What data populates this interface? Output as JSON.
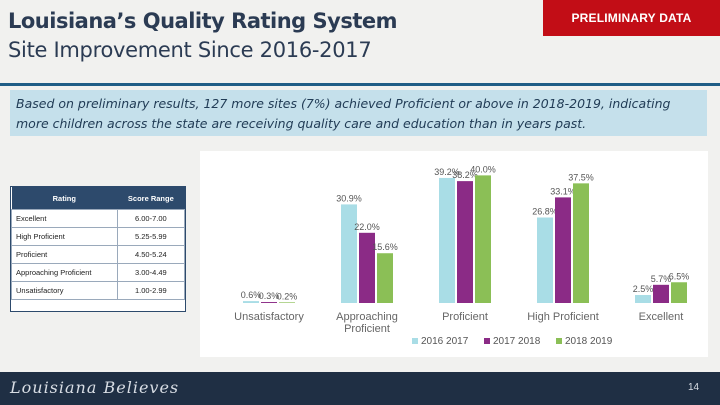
{
  "header": {
    "title": "Louisiana’s Quality Rating System",
    "subtitle": "Site Improvement Since 2016-2017",
    "badge": "PRELIMINARY DATA"
  },
  "callout": {
    "text": "Based on preliminary results, 127 more sites (7%) achieved Proficient or above in 2018-2019, indicating more children across the state are receiving quality care and education than in years past."
  },
  "rating_table": {
    "headers": [
      "Rating",
      "Score Range"
    ],
    "rows": [
      {
        "rating": "Excellent",
        "range": "6.00-7.00"
      },
      {
        "rating": "High Proficient",
        "range": "5.25-5.99"
      },
      {
        "rating": "Proficient",
        "range": "4.50-5.24"
      },
      {
        "rating": "Approaching Proficient",
        "range": "3.00-4.49"
      },
      {
        "rating": "Unsatisfactory",
        "range": "1.00-2.99"
      }
    ]
  },
  "chart_data": {
    "type": "bar",
    "categories": [
      "Unsatisfactory",
      "Approaching Proficient",
      "Proficient",
      "High Proficient",
      "Excellent"
    ],
    "series": [
      {
        "name": "2016 2017",
        "color": "#a9dde6",
        "values": [
          0.6,
          30.9,
          39.2,
          26.8,
          2.5
        ],
        "labels": [
          "0.6%",
          "30.9%",
          "39.2%",
          "26.8%",
          "2.5%"
        ]
      },
      {
        "name": "2017 2018",
        "color": "#8b2b86",
        "values": [
          0.3,
          22.0,
          38.2,
          33.1,
          5.7
        ],
        "labels": [
          "0.3%",
          "22.0%",
          "38.2%",
          "33.1%",
          "5.7%"
        ]
      },
      {
        "name": "2018 2019",
        "color": "#8bbf56",
        "values": [
          0.2,
          15.6,
          40.0,
          37.5,
          6.5
        ],
        "labels": [
          "0.2%",
          "15.6%",
          "40.0%",
          "37.5%",
          "6.5%"
        ]
      }
    ],
    "ylim": [
      0,
      42
    ],
    "grid": false,
    "legend": "bottom"
  },
  "footer": {
    "brand": "Louisiana Believes",
    "page": "14"
  }
}
